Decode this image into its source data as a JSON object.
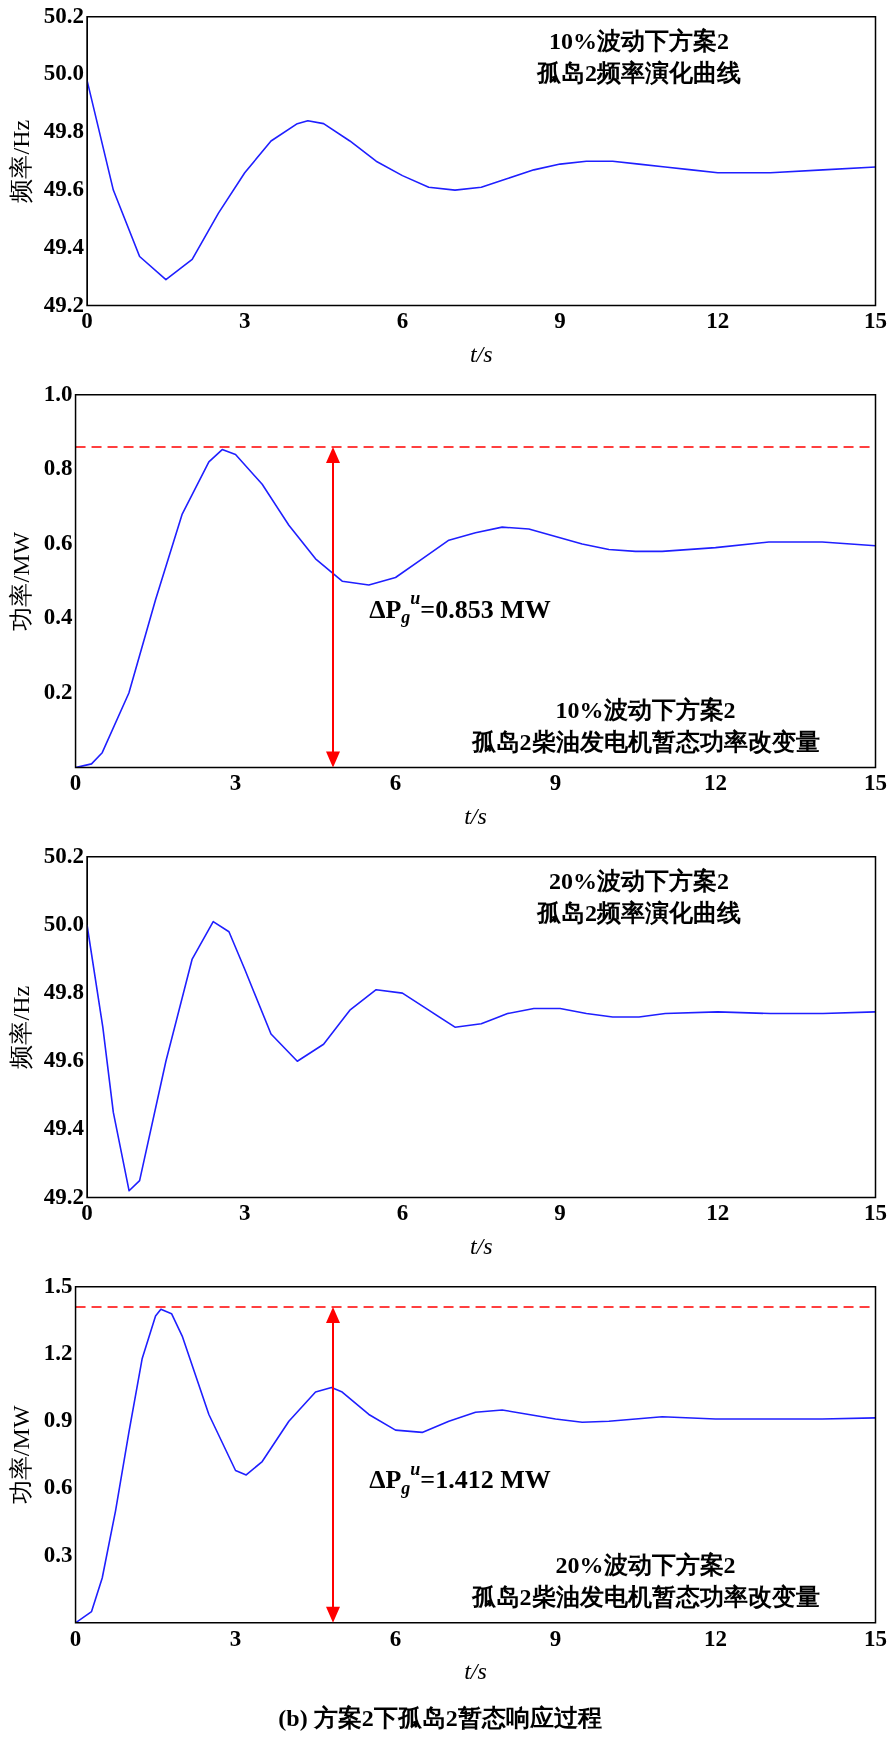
{
  "chart_data": [
    {
      "type": "line",
      "xlabel": "t/s",
      "ylabel": "频率/Hz",
      "xlim": [
        0,
        15
      ],
      "xticks": [
        0,
        3,
        6,
        9,
        12,
        15
      ],
      "ylim": [
        49.2,
        50.2
      ],
      "yticks": [
        {
          "value": 49.2,
          "label": "49.2"
        },
        49.4,
        49.6,
        49.8,
        {
          "value": 50.0,
          "label": "50.0"
        },
        50.2
      ],
      "grid": false,
      "legend": false,
      "marker": "none",
      "line_style": "solid",
      "annotations": [
        "10%波动下方案2\n孤岛2频率演化曲线"
      ],
      "series": [
        {
          "color": "#1f1fff",
          "x": [
            0,
            0.5,
            1,
            1.5,
            2,
            2.5,
            3,
            3.5,
            4,
            4.2,
            4.5,
            5,
            5.5,
            6,
            6.5,
            7,
            7.5,
            8,
            8.5,
            9,
            9.5,
            10,
            10.5,
            11,
            11.5,
            12,
            13,
            14,
            15
          ],
          "values": [
            49.98,
            49.6,
            49.37,
            49.29,
            49.36,
            49.52,
            49.66,
            49.77,
            49.83,
            49.84,
            49.83,
            49.77,
            49.7,
            49.65,
            49.61,
            49.6,
            49.61,
            49.64,
            49.67,
            49.69,
            49.7,
            49.7,
            49.69,
            49.68,
            49.67,
            49.66,
            49.66,
            49.67,
            49.68
          ]
        }
      ]
    },
    {
      "type": "line",
      "xlabel": "t/s",
      "ylabel": "功率/MW",
      "xlim": [
        0,
        15
      ],
      "xticks": [
        0,
        3,
        6,
        9,
        12,
        15
      ],
      "ylim": [
        0,
        1
      ],
      "yticks": [
        0.2,
        0.4,
        0.6,
        0.8,
        {
          "value": 1.0,
          "label": "1.0"
        }
      ],
      "grid": false,
      "legend": false,
      "marker": "none",
      "line_style": "solid",
      "ref_lines": [
        {
          "axis": "y",
          "value": 0.86,
          "color": "#ff0000",
          "line_style": "dashed"
        }
      ],
      "annotations": [
        "ΔP$_{g}$$^{u}$=0.853 MW",
        "10%波动下方案2\n孤岛2柴油发电机暂态功率改变量"
      ],
      "series": [
        {
          "color": "#1f1fff",
          "x": [
            0,
            0.3,
            0.5,
            1,
            1.5,
            2,
            2.5,
            2.75,
            3,
            3.5,
            4,
            4.5,
            5,
            5.5,
            6,
            6.5,
            7,
            7.5,
            8,
            8.5,
            9,
            9.5,
            10,
            10.5,
            11,
            12,
            13,
            14,
            15
          ],
          "values": [
            0,
            0.01,
            0.04,
            0.2,
            0.45,
            0.68,
            0.82,
            0.853,
            0.84,
            0.76,
            0.65,
            0.56,
            0.5,
            0.49,
            0.51,
            0.56,
            0.61,
            0.63,
            0.645,
            0.64,
            0.62,
            0.6,
            0.585,
            0.58,
            0.58,
            0.59,
            0.605,
            0.605,
            0.595
          ]
        }
      ]
    },
    {
      "type": "line",
      "xlabel": "t/s",
      "ylabel": "频率/Hz",
      "xlim": [
        0,
        15
      ],
      "xticks": [
        0,
        3,
        6,
        9,
        12,
        15
      ],
      "ylim": [
        49.2,
        50.2
      ],
      "yticks": [
        {
          "value": 49.2,
          "label": "49.2"
        },
        49.4,
        49.6,
        49.8,
        {
          "value": 50.0,
          "label": "50.0"
        },
        50.2
      ],
      "grid": false,
      "legend": false,
      "marker": "none",
      "line_style": "solid",
      "annotations": [
        "20%波动下方案2\n孤岛2频率演化曲线"
      ],
      "series": [
        {
          "color": "#1f1fff",
          "x": [
            0,
            0.3,
            0.5,
            0.8,
            1,
            1.5,
            2,
            2.4,
            2.7,
            3,
            3.5,
            4,
            4.5,
            5,
            5.5,
            6,
            6.5,
            7,
            7.5,
            8,
            8.5,
            9,
            9.5,
            10,
            10.5,
            11,
            12,
            13,
            14,
            15
          ],
          "values": [
            50.0,
            49.7,
            49.45,
            49.22,
            49.25,
            49.6,
            49.9,
            50.01,
            49.98,
            49.87,
            49.68,
            49.6,
            49.65,
            49.75,
            49.81,
            49.8,
            49.75,
            49.7,
            49.71,
            49.74,
            49.755,
            49.755,
            49.74,
            49.73,
            49.73,
            49.74,
            49.745,
            49.74,
            49.74,
            49.745
          ]
        }
      ]
    },
    {
      "type": "line",
      "title": "(b) 方案2下孤岛2暂态响应过程",
      "xlabel": "t/s",
      "ylabel": "功率/MW",
      "xlim": [
        0,
        15
      ],
      "xticks": [
        0,
        3,
        6,
        9,
        12,
        15
      ],
      "ylim": [
        0,
        1.5
      ],
      "yticks": [
        0.3,
        0.6,
        0.9,
        1.2,
        1.5
      ],
      "grid": false,
      "legend": false,
      "marker": "none",
      "line_style": "solid",
      "ref_lines": [
        {
          "axis": "y",
          "value": 1.41,
          "color": "#ff0000",
          "line_style": "dashed"
        }
      ],
      "annotations": [
        "ΔP$_{g}$$^{u}$=1.412 MW",
        "20%波动下方案2\n孤岛2柴油发电机暂态功率改变量"
      ],
      "series": [
        {
          "color": "#1f1fff",
          "x": [
            0,
            0.3,
            0.5,
            0.75,
            1,
            1.25,
            1.5,
            1.6,
            1.8,
            2,
            2.5,
            3,
            3.2,
            3.5,
            4,
            4.5,
            4.8,
            5,
            5.5,
            6,
            6.5,
            7,
            7.5,
            8,
            8.5,
            9,
            9.5,
            10,
            11,
            12,
            13,
            14,
            15
          ],
          "values": [
            0,
            0.05,
            0.2,
            0.5,
            0.85,
            1.18,
            1.37,
            1.4,
            1.38,
            1.28,
            0.93,
            0.68,
            0.66,
            0.72,
            0.9,
            1.03,
            1.05,
            1.03,
            0.93,
            0.86,
            0.85,
            0.9,
            0.94,
            0.95,
            0.93,
            0.91,
            0.895,
            0.9,
            0.92,
            0.91,
            0.91,
            0.91,
            0.915
          ]
        }
      ]
    }
  ]
}
